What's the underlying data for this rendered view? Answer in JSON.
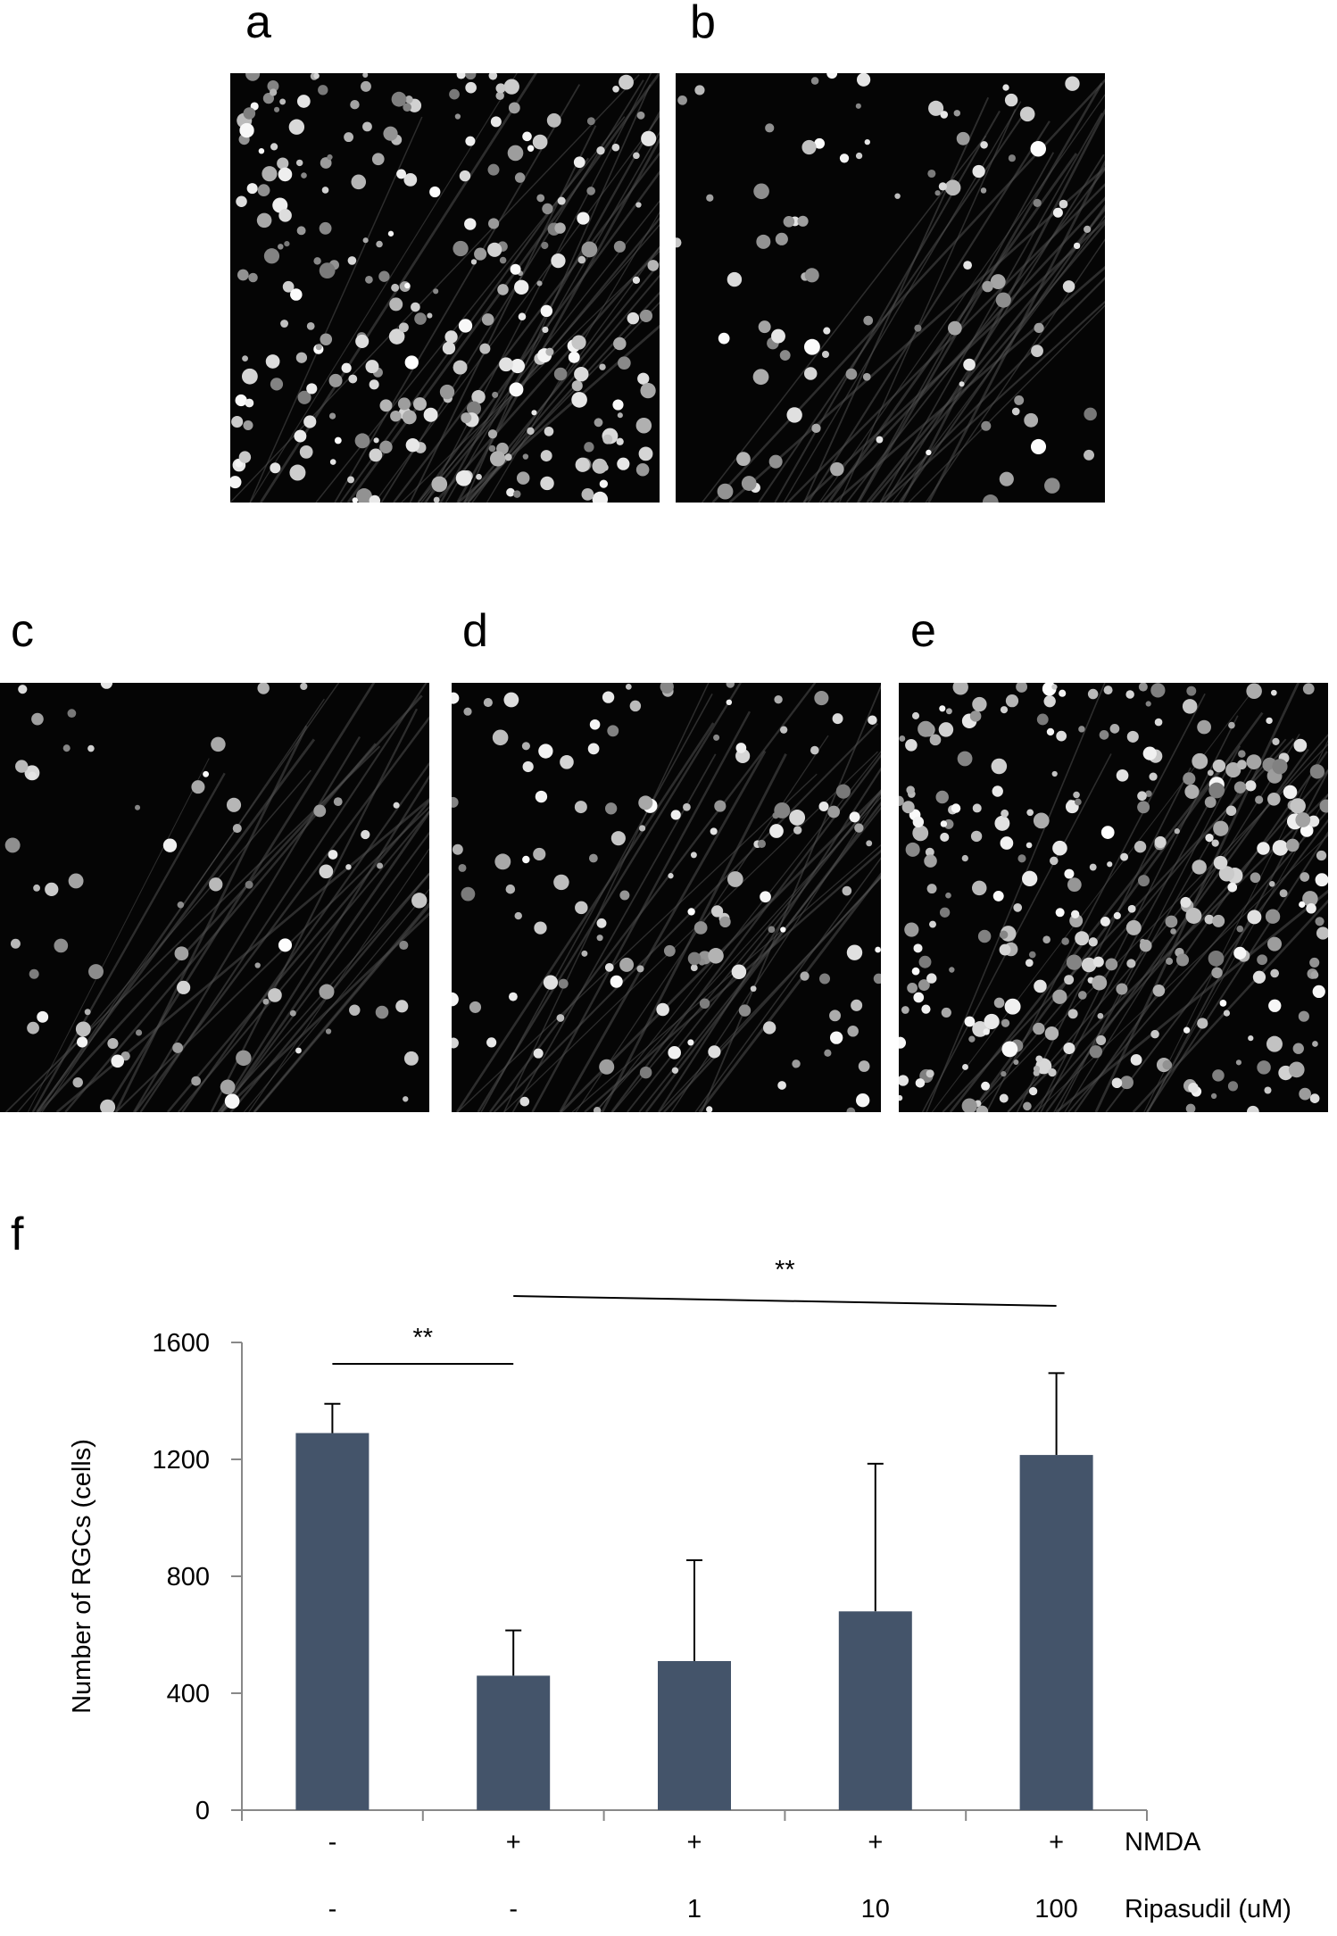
{
  "panels": [
    "a",
    "b",
    "c",
    "d",
    "e"
  ],
  "chart_data": {
    "type": "bar",
    "panel_label": "f",
    "y_label": "Number of RGCs (cells)",
    "categories": [
      null,
      null,
      null,
      null,
      null
    ],
    "values": [
      1290,
      460,
      510,
      680,
      1215
    ],
    "errors": [
      100,
      155,
      345,
      505,
      280
    ],
    "color": "#44546a",
    "ylim": [
      0,
      1600
    ],
    "yticks": [
      0,
      400,
      800,
      1200,
      1600
    ],
    "condition_rows": [
      {
        "name": "NMDA",
        "labels": [
          "-",
          "+",
          "+",
          "+",
          "+"
        ]
      },
      {
        "name": "Ripasudil (uM)",
        "labels": [
          "-",
          "-",
          "1",
          "10",
          "100"
        ]
      }
    ],
    "significance": [
      "**",
      "**"
    ]
  }
}
